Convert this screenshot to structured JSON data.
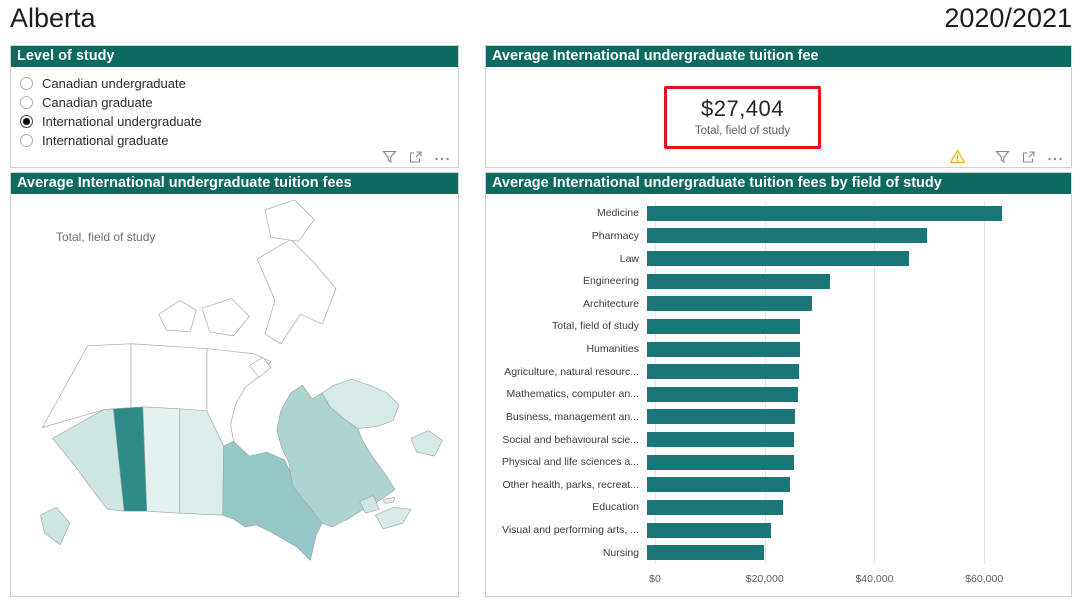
{
  "header": {
    "region": "Alberta",
    "year": "2020/2021"
  },
  "filters": {
    "title": "Level of study",
    "options": [
      {
        "label": "Canadian undergraduate",
        "selected": false
      },
      {
        "label": "Canadian graduate",
        "selected": false
      },
      {
        "label": "International undergraduate",
        "selected": true
      },
      {
        "label": "International graduate",
        "selected": false
      }
    ]
  },
  "card": {
    "title": "Average International undergraduate tuition fee",
    "value": "$27,404",
    "label": "Total, field of study",
    "highlight_color": "#e0151c"
  },
  "map": {
    "title": "Average International undergraduate tuition fees",
    "subtitle": "Total, field of study",
    "colors": {
      "alberta": "#2e8c88",
      "british_columbia": "#cde5e3",
      "vancouver_island": "#cde5e3",
      "saskatchewan": "#e3f1ef",
      "manitoba": "#dbedeb",
      "ontario": "#94c7c5",
      "quebec": "#aed4d1",
      "labrador": "#d6eae8",
      "newfoundland": "#d6eae8",
      "new_brunswick": "#cfe6e4",
      "nova_scotia": "#d6eae8",
      "prince_edward_island": "#e3f1ef",
      "territories": "#ffffff"
    }
  },
  "chart_data": {
    "type": "bar",
    "orientation": "horizontal",
    "title": "Average International undergraduate tuition fees by field of study",
    "categories": [
      "Medicine",
      "Pharmacy",
      "Law",
      "Engineering",
      "Architecture",
      "Total, field of study",
      "Humanities",
      "Agriculture, natural resourc...",
      "Mathematics, computer an...",
      "Business, management an...",
      "Social and behavioural scie...",
      "Physical and life sciences a...",
      "Other health, parks, recreat...",
      "Education",
      "Visual and performing arts, ...",
      "Nursing"
    ],
    "values": [
      63400,
      50100,
      46800,
      32700,
      29500,
      27404,
      27300,
      27200,
      27000,
      26400,
      26300,
      26300,
      25500,
      24300,
      22200,
      20900
    ],
    "xlabel": "",
    "ylabel": "",
    "xlim": [
      0,
      74000
    ],
    "x_ticks": [
      {
        "value": 0,
        "label": "$0"
      },
      {
        "value": 20000,
        "label": "$20,000"
      },
      {
        "value": 40000,
        "label": "$40,000"
      },
      {
        "value": 60000,
        "label": "$60,000"
      }
    ],
    "bar_color": "#1b767a",
    "grid": true,
    "legend": null
  },
  "theme": {
    "panel_header_bg": "#0d6a5e",
    "panel_header_text": "#ffffff"
  }
}
